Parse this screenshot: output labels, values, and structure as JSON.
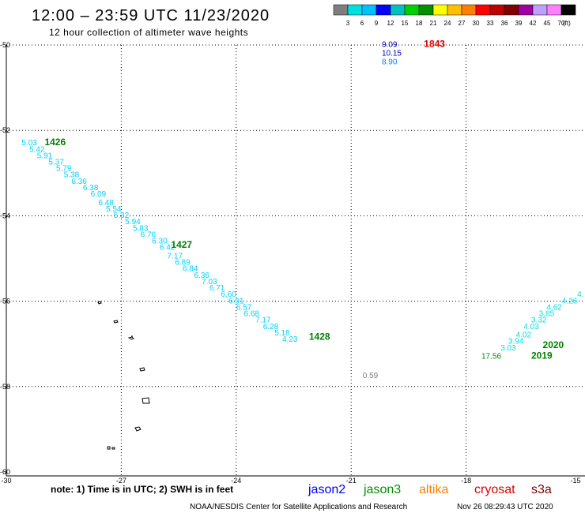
{
  "header": {
    "title": "12:00 – 23:59 UTC 11/23/2020",
    "subtitle": "12 hour collection of altimeter wave heights"
  },
  "legend": {
    "colors": [
      "#7f7f7f",
      "#00e0e0",
      "#00c0ff",
      "#0000ff",
      "#00c0c0",
      "#00d000",
      "#009000",
      "#ffff00",
      "#ffc000",
      "#ff8000",
      "#ff0000",
      "#c00000",
      "#800000",
      "#a000a0",
      "#c0a0ff",
      "#ff80ff",
      "#000000"
    ],
    "labels": [
      "3",
      "6",
      "9",
      "12",
      "15",
      "18",
      "21",
      "24",
      "27",
      "30",
      "33",
      "36",
      "39",
      "42",
      "45",
      "70"
    ],
    "unit": "(ft)"
  },
  "map": {
    "lon_ticks": [
      "-30",
      "-27",
      "-24",
      "-21",
      "-18",
      "-15"
    ],
    "lat_ticks": [
      "-50",
      "-52",
      "-54",
      "-56",
      "-58",
      "-60"
    ],
    "tracks": [
      {
        "color": "#00d0ff",
        "labels": [
          {
            "lon": -29.6,
            "lat": -52.35,
            "text": "5.03"
          },
          {
            "lon": -29.4,
            "lat": -52.5,
            "text": "5.42"
          },
          {
            "lon": -29.2,
            "lat": -52.65,
            "text": "5.91"
          },
          {
            "lon": -28.9,
            "lat": -52.8,
            "text": "5.37"
          },
          {
            "lon": -28.7,
            "lat": -52.95,
            "text": "5.79"
          },
          {
            "lon": -28.5,
            "lat": -53.1,
            "text": "5.38"
          },
          {
            "lon": -28.3,
            "lat": -53.25,
            "text": "6.36"
          },
          {
            "lon": -28.0,
            "lat": -53.4,
            "text": "6.38"
          },
          {
            "lon": -27.8,
            "lat": -53.55,
            "text": "6.09"
          },
          {
            "lon": -27.6,
            "lat": -53.75,
            "text": "6.48"
          },
          {
            "lon": -27.4,
            "lat": -53.9,
            "text": "5.54"
          },
          {
            "lon": -27.2,
            "lat": -54.05,
            "text": "5.32"
          },
          {
            "lon": -26.9,
            "lat": -54.2,
            "text": "5.94"
          },
          {
            "lon": -26.7,
            "lat": -54.35,
            "text": "5.83"
          },
          {
            "lon": -26.5,
            "lat": -54.5,
            "text": "6.76"
          },
          {
            "lon": -26.2,
            "lat": -54.65,
            "text": "6.30"
          },
          {
            "lon": -26.0,
            "lat": -54.8,
            "text": "6.42"
          },
          {
            "lon": -25.8,
            "lat": -55.0,
            "text": "7.17"
          },
          {
            "lon": -25.6,
            "lat": -55.15,
            "text": "6.89"
          },
          {
            "lon": -25.4,
            "lat": -55.3,
            "text": "6.84"
          },
          {
            "lon": -25.1,
            "lat": -55.45,
            "text": "6.36"
          },
          {
            "lon": -24.9,
            "lat": -55.6,
            "text": "7.03"
          },
          {
            "lon": -24.7,
            "lat": -55.75,
            "text": "6.71"
          },
          {
            "lon": -24.4,
            "lat": -55.9,
            "text": "6.60"
          },
          {
            "lon": -24.2,
            "lat": -56.05,
            "text": "6.91"
          },
          {
            "lon": -24.0,
            "lat": -56.2,
            "text": "6.57"
          },
          {
            "lon": -23.8,
            "lat": -56.35,
            "text": "6.68"
          },
          {
            "lon": -23.5,
            "lat": -56.5,
            "text": "7.17"
          },
          {
            "lon": -23.3,
            "lat": -56.65,
            "text": "6.28"
          },
          {
            "lon": -23.0,
            "lat": -56.8,
            "text": "5.18"
          },
          {
            "lon": -22.8,
            "lat": -56.95,
            "text": "4.23"
          }
        ]
      },
      {
        "color": "#00e0e0",
        "labels": [
          {
            "lon": -17.1,
            "lat": -57.15,
            "text": "3.03"
          },
          {
            "lon": -16.9,
            "lat": -57.0,
            "text": "3.94"
          },
          {
            "lon": -16.7,
            "lat": -56.85,
            "text": "4.02"
          },
          {
            "lon": -16.5,
            "lat": -56.65,
            "text": "4.03"
          },
          {
            "lon": -16.3,
            "lat": -56.5,
            "text": "3.32"
          },
          {
            "lon": -16.1,
            "lat": -56.35,
            "text": "3.85"
          },
          {
            "lon": -15.9,
            "lat": -56.2,
            "text": "4.62"
          },
          {
            "lon": -15.5,
            "lat": -56.05,
            "text": "4.26"
          },
          {
            "lon": -15.1,
            "lat": -55.9,
            "text": "4."
          }
        ]
      }
    ],
    "point_labels": [
      {
        "lon": -20.2,
        "lat": -50.05,
        "text": "9.09",
        "color": "#0000c0"
      },
      {
        "lon": -20.2,
        "lat": -50.25,
        "text": "10.15",
        "color": "#0000c0"
      },
      {
        "lon": -20.2,
        "lat": -50.45,
        "text": "8.90",
        "color": "#0080ff"
      },
      {
        "lon": -20.7,
        "lat": -57.8,
        "text": "0.59",
        "color": "#808080"
      },
      {
        "lon": -17.6,
        "lat": -57.35,
        "text": "17.56",
        "color": "#009000"
      }
    ],
    "time_labels": [
      {
        "lon": -19.1,
        "lat": -50.05,
        "text": "1843",
        "color": "#e00000"
      },
      {
        "lon": -29.0,
        "lat": -52.35,
        "text": "1426",
        "color": "#008000"
      },
      {
        "lon": -25.7,
        "lat": -54.75,
        "text": "1427",
        "color": "#008000"
      },
      {
        "lon": -22.1,
        "lat": -56.9,
        "text": "1428",
        "color": "#008000"
      },
      {
        "lon": -16.0,
        "lat": -57.1,
        "text": "2020",
        "color": "#008000"
      },
      {
        "lon": -16.3,
        "lat": -57.35,
        "text": "2019",
        "color": "#008000"
      }
    ]
  },
  "footer": {
    "note": "note: 1) Time is in UTC; 2) SWH is in feet",
    "satellites": [
      {
        "name": "jason2",
        "color": "#0000ff"
      },
      {
        "name": "jason3",
        "color": "#009000"
      },
      {
        "name": "altika",
        "color": "#ff8000"
      },
      {
        "name": "cryosat",
        "color": "#e00000"
      },
      {
        "name": "s3a",
        "color": "#800000"
      }
    ],
    "credit": "NOAA/NESDIS Center for Satellite Applications and Research",
    "timestamp": "Nov 26 08:29:43 UTC 2020"
  }
}
